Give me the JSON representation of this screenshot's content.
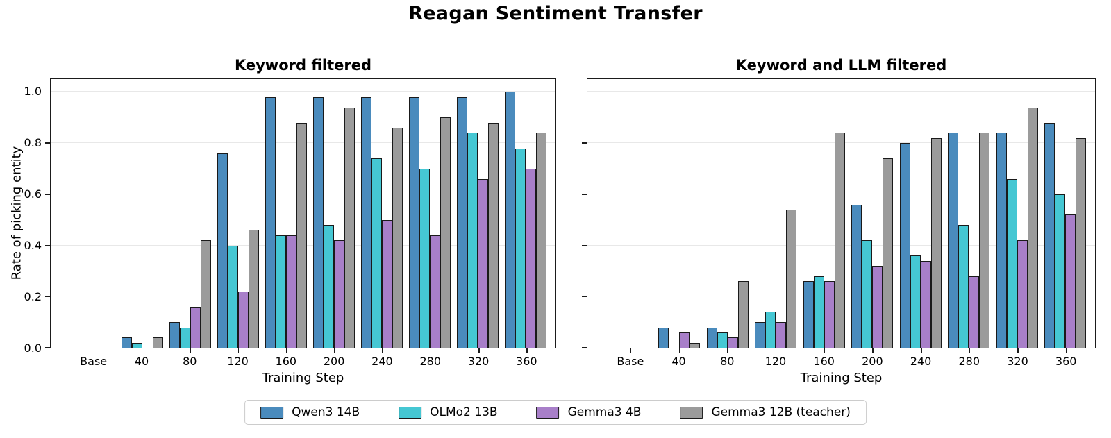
{
  "figure": {
    "title": "Reagan Sentiment Transfer",
    "background": "#ffffff"
  },
  "shared": {
    "ylabel": "Rate of picking entity",
    "xlabel": "Training Step",
    "ytick_labels": [
      "0.0",
      "0.2",
      "0.4",
      "0.6",
      "0.8",
      "1.0"
    ]
  },
  "legend": {
    "position": "bottom-center",
    "items": [
      {
        "label": "Qwen3 14B",
        "color": "#4a8bbd"
      },
      {
        "label": "OLMo2 13B",
        "color": "#45c7d3"
      },
      {
        "label": "Gemma3 4B",
        "color": "#a87fc9"
      },
      {
        "label": "Gemma3 12B (teacher)",
        "color": "#9b9b9b"
      }
    ]
  },
  "style": {
    "bar_edge_color": "#1a1a1a",
    "grid_color": "#e8e8e8",
    "spine_color": "#1b1b1b"
  },
  "chart_data": [
    {
      "type": "bar",
      "title": "Keyword filtered",
      "xlabel": "Training Step",
      "ylabel": "Rate of picking entity",
      "categories": [
        "Base",
        "40",
        "80",
        "120",
        "160",
        "200",
        "240",
        "280",
        "320",
        "360"
      ],
      "ylim": [
        0,
        1.05
      ],
      "yticks": [
        0.0,
        0.2,
        0.4,
        0.6,
        0.8,
        1.0
      ],
      "grid": true,
      "series": [
        {
          "name": "Qwen3 14B",
          "color": "#4a8bbd",
          "values": [
            0,
            0.04,
            0.1,
            0.76,
            0.98,
            0.98,
            0.98,
            0.98,
            0.98,
            1.0
          ]
        },
        {
          "name": "OLMo2 13B",
          "color": "#45c7d3",
          "values": [
            0,
            0.02,
            0.08,
            0.4,
            0.44,
            0.48,
            0.74,
            0.7,
            0.84,
            0.78
          ]
        },
        {
          "name": "Gemma3 4B",
          "color": "#a87fc9",
          "values": [
            0,
            0,
            0.16,
            0.22,
            0.44,
            0.42,
            0.5,
            0.44,
            0.66,
            0.7
          ]
        },
        {
          "name": "Gemma3 12B (teacher)",
          "color": "#9b9b9b",
          "values": [
            0,
            0.04,
            0.42,
            0.46,
            0.88,
            0.94,
            0.86,
            0.9,
            0.88,
            0.84
          ]
        }
      ]
    },
    {
      "type": "bar",
      "title": "Keyword and LLM filtered",
      "xlabel": "Training Step",
      "ylabel": "",
      "categories": [
        "Base",
        "40",
        "80",
        "120",
        "160",
        "200",
        "240",
        "280",
        "320",
        "360"
      ],
      "ylim": [
        0,
        1.05
      ],
      "yticks": [
        0.0,
        0.2,
        0.4,
        0.6,
        0.8,
        1.0
      ],
      "grid": true,
      "series": [
        {
          "name": "Qwen3 14B",
          "color": "#4a8bbd",
          "values": [
            0,
            0.08,
            0.08,
            0.1,
            0.26,
            0.56,
            0.8,
            0.84,
            0.84,
            0.88
          ]
        },
        {
          "name": "OLMo2 13B",
          "color": "#45c7d3",
          "values": [
            0,
            0,
            0.06,
            0.14,
            0.28,
            0.42,
            0.36,
            0.48,
            0.66,
            0.6
          ]
        },
        {
          "name": "Gemma3 4B",
          "color": "#a87fc9",
          "values": [
            0,
            0.06,
            0.04,
            0.1,
            0.26,
            0.32,
            0.34,
            0.28,
            0.42,
            0.52
          ]
        },
        {
          "name": "Gemma3 12B (teacher)",
          "color": "#9b9b9b",
          "values": [
            0,
            0.02,
            0.26,
            0.54,
            0.84,
            0.74,
            0.82,
            0.84,
            0.94,
            0.82
          ]
        }
      ]
    }
  ]
}
